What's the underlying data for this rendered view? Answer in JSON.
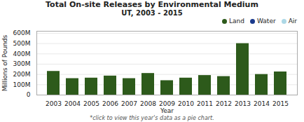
{
  "chart_data": {
    "type": "bar",
    "title": "Total On-site Releases by Environmental Medium",
    "subtitle": "UT, 2003 - 2015",
    "xlabel": "Year",
    "ylabel": "Millions of Pounds",
    "footnote": "*click to view this year's data as a pie chart.",
    "categories": [
      "2003",
      "2004",
      "2005",
      "2006",
      "2007",
      "2008",
      "2009",
      "2010",
      "2011",
      "2012",
      "2013",
      "2014",
      "2015"
    ],
    "series": [
      {
        "name": "Land",
        "color": "#2d5a1b",
        "values": [
          230,
          160,
          165,
          185,
          160,
          210,
          140,
          165,
          190,
          180,
          500,
          200,
          225
        ]
      },
      {
        "name": "Water",
        "color": "#1a3a8c",
        "values": [
          null,
          null,
          null,
          null,
          null,
          null,
          null,
          null,
          null,
          null,
          null,
          null,
          null
        ]
      },
      {
        "name": "Air",
        "color": "#add8e6",
        "values": [
          null,
          null,
          null,
          null,
          null,
          null,
          null,
          null,
          null,
          null,
          null,
          null,
          null
        ]
      }
    ],
    "ylim": [
      0,
      620
    ],
    "yticks": [
      0,
      {
        "value": 100,
        "label": "100M"
      },
      {
        "value": 200,
        "label": "200M"
      },
      {
        "value": 300,
        "label": "300M"
      },
      {
        "value": 400,
        "label": "400M"
      },
      {
        "value": 500,
        "label": "500M"
      },
      {
        "value": 600,
        "label": "600M"
      }
    ],
    "grid": true,
    "legend": "upper right"
  }
}
